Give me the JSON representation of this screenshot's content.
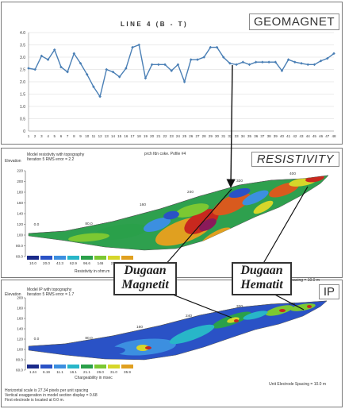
{
  "geomagnet": {
    "title": "LINE 4 (B - T)",
    "tag": "GEOMAGNET",
    "chart_data": {
      "type": "line",
      "title": "LINE 4 (B - T)",
      "x": [
        1,
        2,
        3,
        4,
        5,
        6,
        7,
        8,
        9,
        10,
        11,
        12,
        13,
        14,
        15,
        16,
        17,
        18,
        19,
        20,
        21,
        22,
        23,
        24,
        25,
        26,
        27,
        28,
        29,
        30,
        31,
        32,
        33,
        34,
        35,
        36,
        37,
        38,
        39,
        40,
        41,
        42,
        43,
        44,
        45,
        46,
        47,
        48
      ],
      "values": [
        2.55,
        2.5,
        3.05,
        2.9,
        3.3,
        2.6,
        2.4,
        3.15,
        2.75,
        2.3,
        1.8,
        1.4,
        2.5,
        2.4,
        2.2,
        2.55,
        3.4,
        3.5,
        2.15,
        2.7,
        2.7,
        2.7,
        2.45,
        2.7,
        2.0,
        2.9,
        2.9,
        3.0,
        3.4,
        3.4,
        3.0,
        2.75,
        2.7,
        2.8,
        2.7,
        2.8,
        2.8,
        2.8,
        2.8,
        2.45,
        2.9,
        2.8,
        2.75,
        2.7,
        2.7,
        2.85,
        2.95,
        3.15
      ],
      "y_ticks": [
        "0",
        "0.5",
        "1.0",
        "1.5",
        "2.0",
        "2.5",
        "3.0",
        "3.5",
        "4.0"
      ],
      "ylim": [
        0,
        4.0
      ],
      "grid": true,
      "line_color": "#4a7fb5"
    }
  },
  "resistivity": {
    "tag": "RESISTIVITY",
    "header": "prch fdn coke. Pofile #4",
    "model_line1": "Model resistivity with topography",
    "model_line2": "Iteration 5 RMS error = 2.2",
    "elevation_label": "Elevation",
    "elev_ticks": [
      "220",
      "200",
      "180",
      "160",
      "140",
      "120",
      "100",
      "80.0",
      "60.0"
    ],
    "distance_labels": [
      "0.0",
      "80.0",
      "160",
      "240",
      "320",
      "400"
    ],
    "scale_values": [
      "10.0",
      "20.0",
      "42.3",
      "62.9",
      "96.6",
      "146",
      "220",
      "335"
    ],
    "scale_caption": "Resistivity in ohm.m"
  },
  "ip": {
    "tag": "IP",
    "model_line1": "Model IP with topography",
    "model_line2": "Iteration 5 RMS error = 1.7",
    "elevation_label": "Elevation",
    "elev_ticks": [
      "200",
      "180",
      "160",
      "140",
      "120",
      "100",
      "80.0",
      "60.0"
    ],
    "distance_labels": [
      "0.0",
      "80.0",
      "160",
      "240",
      "320",
      "400"
    ],
    "scale_values": [
      "1.24",
      "6.19",
      "11.1",
      "16.1",
      "21.1",
      "26.0",
      "31.0",
      "35.9"
    ],
    "scale_caption": "Chargeability in msec",
    "electrode_spacing_top": "Unit Electrode Spacing = 10.0 m",
    "electrode_spacing_bottom": "Unit Electrode Spacing = 10.0 m",
    "footnote1": "Horizontal scale is 27.34 pixels per unit spacing",
    "footnote2": "Vertical exaggeration in model section display = 0.68",
    "footnote3": "First electrode is located at 0.0 m."
  },
  "callouts": {
    "magnetit_line1": "Dugaan",
    "magnetit_line2": "Magnetit",
    "hematit_line1": "Dugaan",
    "hematit_line2": "Hematit"
  },
  "colors": {
    "scale": [
      "#1a2a8a",
      "#2a52c6",
      "#3c8fe0",
      "#28b6c8",
      "#2aa04a",
      "#7cc832",
      "#d6d62a",
      "#e0a020",
      "#d85a1e",
      "#c8281e",
      "#8a1a5a",
      "#6a1a7a"
    ]
  }
}
